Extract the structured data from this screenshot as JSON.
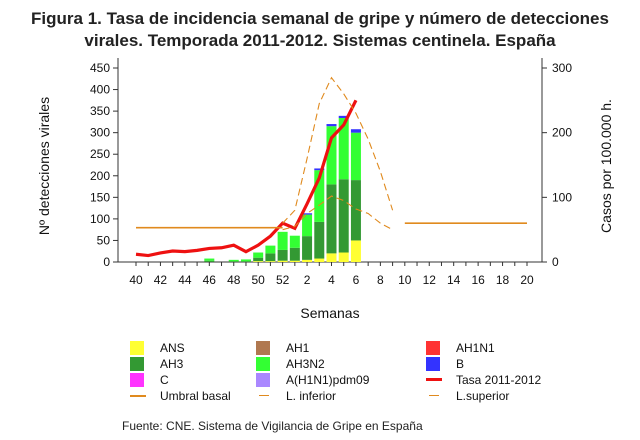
{
  "title_line1": "Figura 1. Tasa de incidencia semanal de gripe y número de detecciones",
  "title_line2": "virales. Temporada 2011-2012. Sistemas centinela. España",
  "source": "Fuente: CNE. Sistema de Vigilancia de Gripe en España",
  "chart_data": {
    "type": "bar",
    "xlabel": "Semanas",
    "ylabel_left": "Nº detecciones virales",
    "ylabel_right": "Casos por 100.000 h.",
    "ylim_left": [
      0,
      450
    ],
    "ylim_right": [
      0,
      300
    ],
    "yticks_left": [
      0,
      50,
      100,
      150,
      200,
      250,
      300,
      350,
      400,
      450
    ],
    "yticks_right": [
      0,
      100,
      200,
      300
    ],
    "weeks": [
      "40",
      "41",
      "42",
      "43",
      "44",
      "45",
      "46",
      "47",
      "48",
      "49",
      "50",
      "51",
      "52",
      "1",
      "2",
      "3",
      "4",
      "5",
      "6",
      "7",
      "8",
      "9",
      "10",
      "11",
      "12",
      "13",
      "14",
      "15",
      "16",
      "17",
      "18",
      "19",
      "20"
    ],
    "tick_labels": [
      "40",
      "42",
      "44",
      "46",
      "48",
      "50",
      "52",
      "2",
      "4",
      "6",
      "8",
      "10",
      "12",
      "14",
      "16",
      "18",
      "20"
    ],
    "stack_order": [
      "ANS",
      "AH3",
      "C",
      "AH1",
      "AH3N2",
      "A(H1N1)pdm09",
      "AH1N1",
      "B"
    ],
    "series": [
      {
        "name": "ANS",
        "color": "#ffff33",
        "values": [
          0,
          0,
          0,
          0,
          0,
          0,
          0,
          0,
          0,
          0,
          2,
          2,
          3,
          3,
          5,
          8,
          20,
          22,
          50,
          0,
          0,
          0,
          0,
          0,
          0,
          0,
          0,
          0,
          0,
          0,
          0,
          0,
          0
        ]
      },
      {
        "name": "AH3",
        "color": "#339933",
        "values": [
          0,
          0,
          0,
          0,
          0,
          0,
          3,
          0,
          2,
          2,
          8,
          18,
          25,
          30,
          55,
          85,
          160,
          170,
          140,
          0,
          0,
          0,
          0,
          0,
          0,
          0,
          0,
          0,
          0,
          0,
          0,
          0,
          0
        ]
      },
      {
        "name": "C",
        "color": "#ff33ff",
        "values": [
          0,
          0,
          0,
          0,
          0,
          0,
          0,
          0,
          0,
          0,
          0,
          0,
          0,
          0,
          0,
          0,
          0,
          0,
          0,
          0,
          0,
          0,
          0,
          0,
          0,
          0,
          0,
          0,
          0,
          0,
          0,
          0,
          0
        ]
      },
      {
        "name": "AH1",
        "color": "#b07850",
        "values": [
          0,
          0,
          0,
          0,
          0,
          0,
          0,
          0,
          0,
          0,
          0,
          0,
          0,
          0,
          0,
          0,
          0,
          0,
          0,
          0,
          0,
          0,
          0,
          0,
          0,
          0,
          0,
          0,
          0,
          0,
          0,
          0,
          0
        ]
      },
      {
        "name": "AH3N2",
        "color": "#33ff33",
        "values": [
          0,
          0,
          0,
          0,
          0,
          0,
          5,
          0,
          3,
          4,
          12,
          18,
          42,
          28,
          50,
          120,
          135,
          142,
          110,
          0,
          0,
          0,
          0,
          0,
          0,
          0,
          0,
          0,
          0,
          0,
          0,
          0,
          0
        ]
      },
      {
        "name": "A(H1N1)pdm09",
        "color": "#aa88ff",
        "values": [
          0,
          0,
          0,
          0,
          0,
          0,
          0,
          0,
          0,
          0,
          0,
          0,
          0,
          0,
          0,
          0,
          0,
          0,
          0,
          0,
          0,
          0,
          0,
          0,
          0,
          0,
          0,
          0,
          0,
          0,
          0,
          0,
          0
        ]
      },
      {
        "name": "AH1N1",
        "color": "#ff3333",
        "values": [
          0,
          0,
          0,
          0,
          0,
          0,
          0,
          0,
          0,
          0,
          0,
          0,
          0,
          0,
          0,
          0,
          0,
          0,
          0,
          0,
          0,
          0,
          0,
          0,
          0,
          0,
          0,
          0,
          0,
          0,
          0,
          0,
          0
        ]
      },
      {
        "name": "B",
        "color": "#3333ff",
        "values": [
          0,
          0,
          0,
          0,
          0,
          0,
          0,
          0,
          0,
          0,
          0,
          0,
          0,
          0,
          3,
          4,
          5,
          5,
          8,
          0,
          0,
          0,
          0,
          0,
          0,
          0,
          0,
          0,
          0,
          0,
          0,
          0,
          0
        ]
      }
    ],
    "lines": [
      {
        "name": "Tasa 2011-2012",
        "color": "#ee1111",
        "axis": "right",
        "values": [
          12,
          10,
          14,
          17,
          16,
          18,
          21,
          22,
          26,
          16,
          26,
          40,
          60,
          52,
          90,
          130,
          192,
          212,
          250,
          null,
          null,
          null,
          null,
          null,
          null,
          null,
          null,
          null,
          null,
          null,
          null,
          null,
          null
        ]
      },
      {
        "name": "Umbral basal",
        "color": "#e08a1e",
        "axis": "right",
        "values": [
          53,
          53,
          53,
          53,
          53,
          53,
          53,
          53,
          53,
          53,
          53,
          53,
          53,
          null,
          null,
          null,
          null,
          null,
          null,
          null,
          null,
          null,
          60,
          60,
          60,
          60,
          60,
          60,
          60,
          60,
          60,
          60,
          60
        ]
      },
      {
        "name": "L. inferior",
        "color": "#e08a1e",
        "axis": "right",
        "values": [
          null,
          null,
          null,
          null,
          null,
          null,
          null,
          null,
          null,
          null,
          null,
          null,
          50,
          55,
          75,
          88,
          102,
          95,
          82,
          75,
          60,
          50,
          null,
          null,
          null,
          null,
          null,
          null,
          null,
          null,
          null,
          null,
          null
        ]
      },
      {
        "name": "L.superior",
        "color": "#e08a1e",
        "axis": "right",
        "values": [
          null,
          null,
          null,
          null,
          null,
          null,
          null,
          null,
          null,
          null,
          null,
          null,
          60,
          80,
          160,
          245,
          285,
          260,
          230,
          190,
          140,
          80,
          null,
          null,
          null,
          null,
          null,
          null,
          null,
          null,
          null,
          null,
          null
        ]
      }
    ],
    "legend": [
      {
        "label": "ANS",
        "kind": "box",
        "color": "#ffff33"
      },
      {
        "label": "AH1",
        "kind": "box",
        "color": "#b07850"
      },
      {
        "label": "AH1N1",
        "kind": "box",
        "color": "#ff3333"
      },
      {
        "label": "AH3",
        "kind": "box",
        "color": "#339933"
      },
      {
        "label": "AH3N2",
        "kind": "box",
        "color": "#33ff33"
      },
      {
        "label": "B",
        "kind": "box",
        "color": "#3333ff"
      },
      {
        "label": "C",
        "kind": "box",
        "color": "#ff33ff"
      },
      {
        "label": "A(H1N1)pdm09",
        "kind": "box",
        "color": "#aa88ff"
      },
      {
        "label": "Tasa 2011-2012",
        "kind": "thick",
        "color": "#ee1111"
      },
      {
        "label": "Umbral basal",
        "kind": "solid",
        "color": "#e08a1e"
      },
      {
        "label": "L. inferior",
        "kind": "dash",
        "color": "#e08a1e"
      },
      {
        "label": "L.superior",
        "kind": "dash",
        "color": "#e08a1e"
      }
    ]
  }
}
